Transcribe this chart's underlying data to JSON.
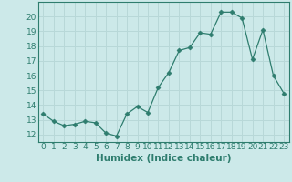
{
  "x": [
    0,
    1,
    2,
    3,
    4,
    5,
    6,
    7,
    8,
    9,
    10,
    11,
    12,
    13,
    14,
    15,
    16,
    17,
    18,
    19,
    20,
    21,
    22,
    23
  ],
  "y": [
    13.4,
    12.9,
    12.6,
    12.7,
    12.9,
    12.8,
    12.1,
    11.9,
    13.4,
    13.9,
    13.5,
    15.2,
    16.2,
    17.7,
    17.9,
    18.9,
    18.8,
    20.3,
    20.3,
    19.9,
    17.1,
    19.1,
    16.0,
    14.8
  ],
  "line_color": "#2e7d6e",
  "marker": "D",
  "marker_size": 2.5,
  "bg_color": "#cce9e9",
  "grid_color": "#b8d8d8",
  "tick_color": "#2e7d6e",
  "xlabel": "Humidex (Indice chaleur)",
  "ylim": [
    11.5,
    21.0
  ],
  "xlim": [
    -0.5,
    23.5
  ],
  "yticks": [
    12,
    13,
    14,
    15,
    16,
    17,
    18,
    19,
    20
  ],
  "xticks": [
    0,
    1,
    2,
    3,
    4,
    5,
    6,
    7,
    8,
    9,
    10,
    11,
    12,
    13,
    14,
    15,
    16,
    17,
    18,
    19,
    20,
    21,
    22,
    23
  ],
  "tick_fontsize": 6.5,
  "label_fontsize": 7.5
}
